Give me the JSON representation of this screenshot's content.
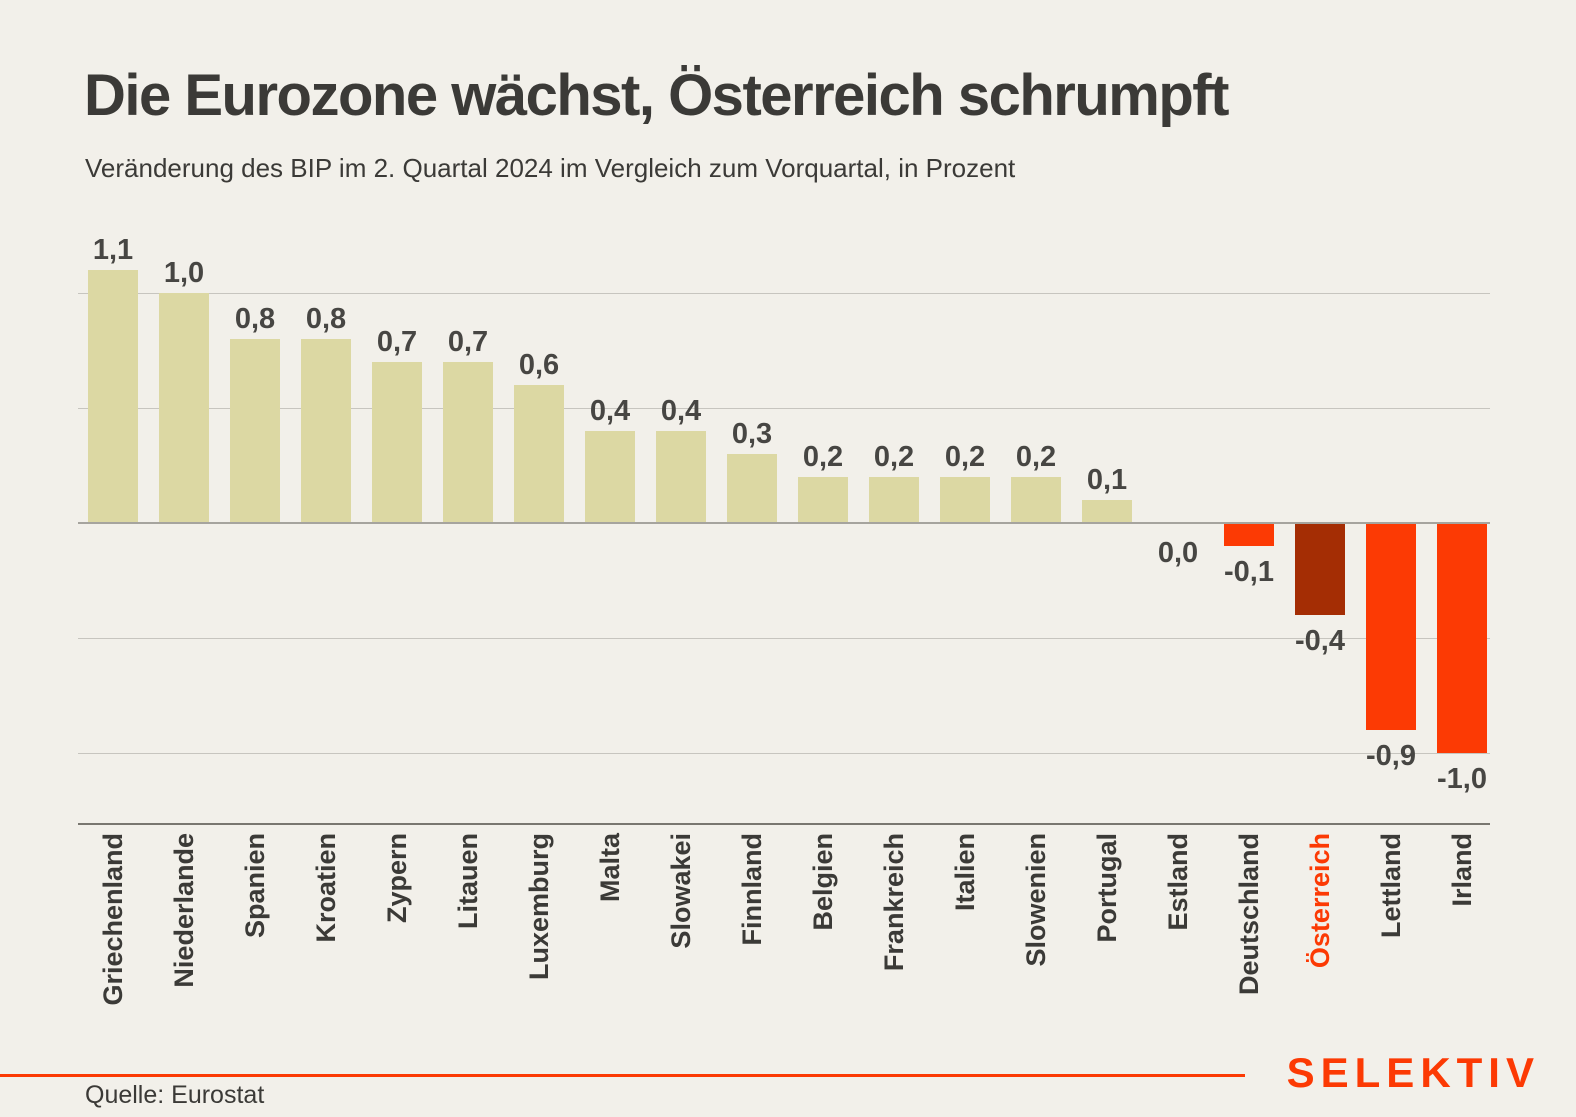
{
  "header": {
    "title": "Die Eurozone wächst, Österreich schrumpft",
    "subtitle": "Veränderung des BIP im 2. Quartal 2024 im Vergleich zum Vorquartal, in Prozent"
  },
  "footer": {
    "source": "Quelle: Eurostat",
    "logo": "SELEKTIV"
  },
  "colors": {
    "background": "#f2f0ea",
    "bar_positive": "#dcd8a3",
    "bar_negative": "#fc3a04",
    "bar_highlight": "#a42d04",
    "text_dark": "#3b3a37",
    "value_text": "#474643",
    "grid": "#c7c5bf",
    "zero_line": "#a6a49e",
    "axis_line": "#797770",
    "accent": "#fc3a04"
  },
  "chart_data": {
    "type": "bar",
    "title": "Die Eurozone wächst, Österreich schrumpft",
    "subtitle": "Veränderung des BIP im 2. Quartal 2024 im Vergleich zum Vorquartal, in Prozent",
    "categories": [
      "Griechenland",
      "Niederlande",
      "Spanien",
      "Kroatien",
      "Zypern",
      "Litauen",
      "Luxemburg",
      "Malta",
      "Slowakei",
      "Finnland",
      "Belgien",
      "Frankreich",
      "Italien",
      "Slowenien",
      "Portugal",
      "Estland",
      "Deutschland",
      "Österreich",
      "Lettland",
      "Irland"
    ],
    "values": [
      1.1,
      1.0,
      0.8,
      0.8,
      0.7,
      0.7,
      0.6,
      0.4,
      0.4,
      0.3,
      0.2,
      0.2,
      0.2,
      0.2,
      0.1,
      0.0,
      -0.1,
      -0.4,
      -0.9,
      -1.0
    ],
    "value_labels": [
      "1,1",
      "1,0",
      "0,8",
      "0,8",
      "0,7",
      "0,7",
      "0,6",
      "0,4",
      "0,4",
      "0,3",
      "0,2",
      "0,2",
      "0,2",
      "0,2",
      "0,1",
      "0,0",
      "-0,1",
      "-0,4",
      "-0,9",
      "-1,0"
    ],
    "highlight_category": "Österreich",
    "highlight_index": 17,
    "xlabel": "",
    "ylabel": "",
    "ylim": [
      -1.3,
      1.25
    ],
    "gridlines": [
      1.0,
      0.5,
      0.0,
      -0.5,
      -1.0
    ],
    "legend": "none",
    "source": "Quelle: Eurostat"
  }
}
